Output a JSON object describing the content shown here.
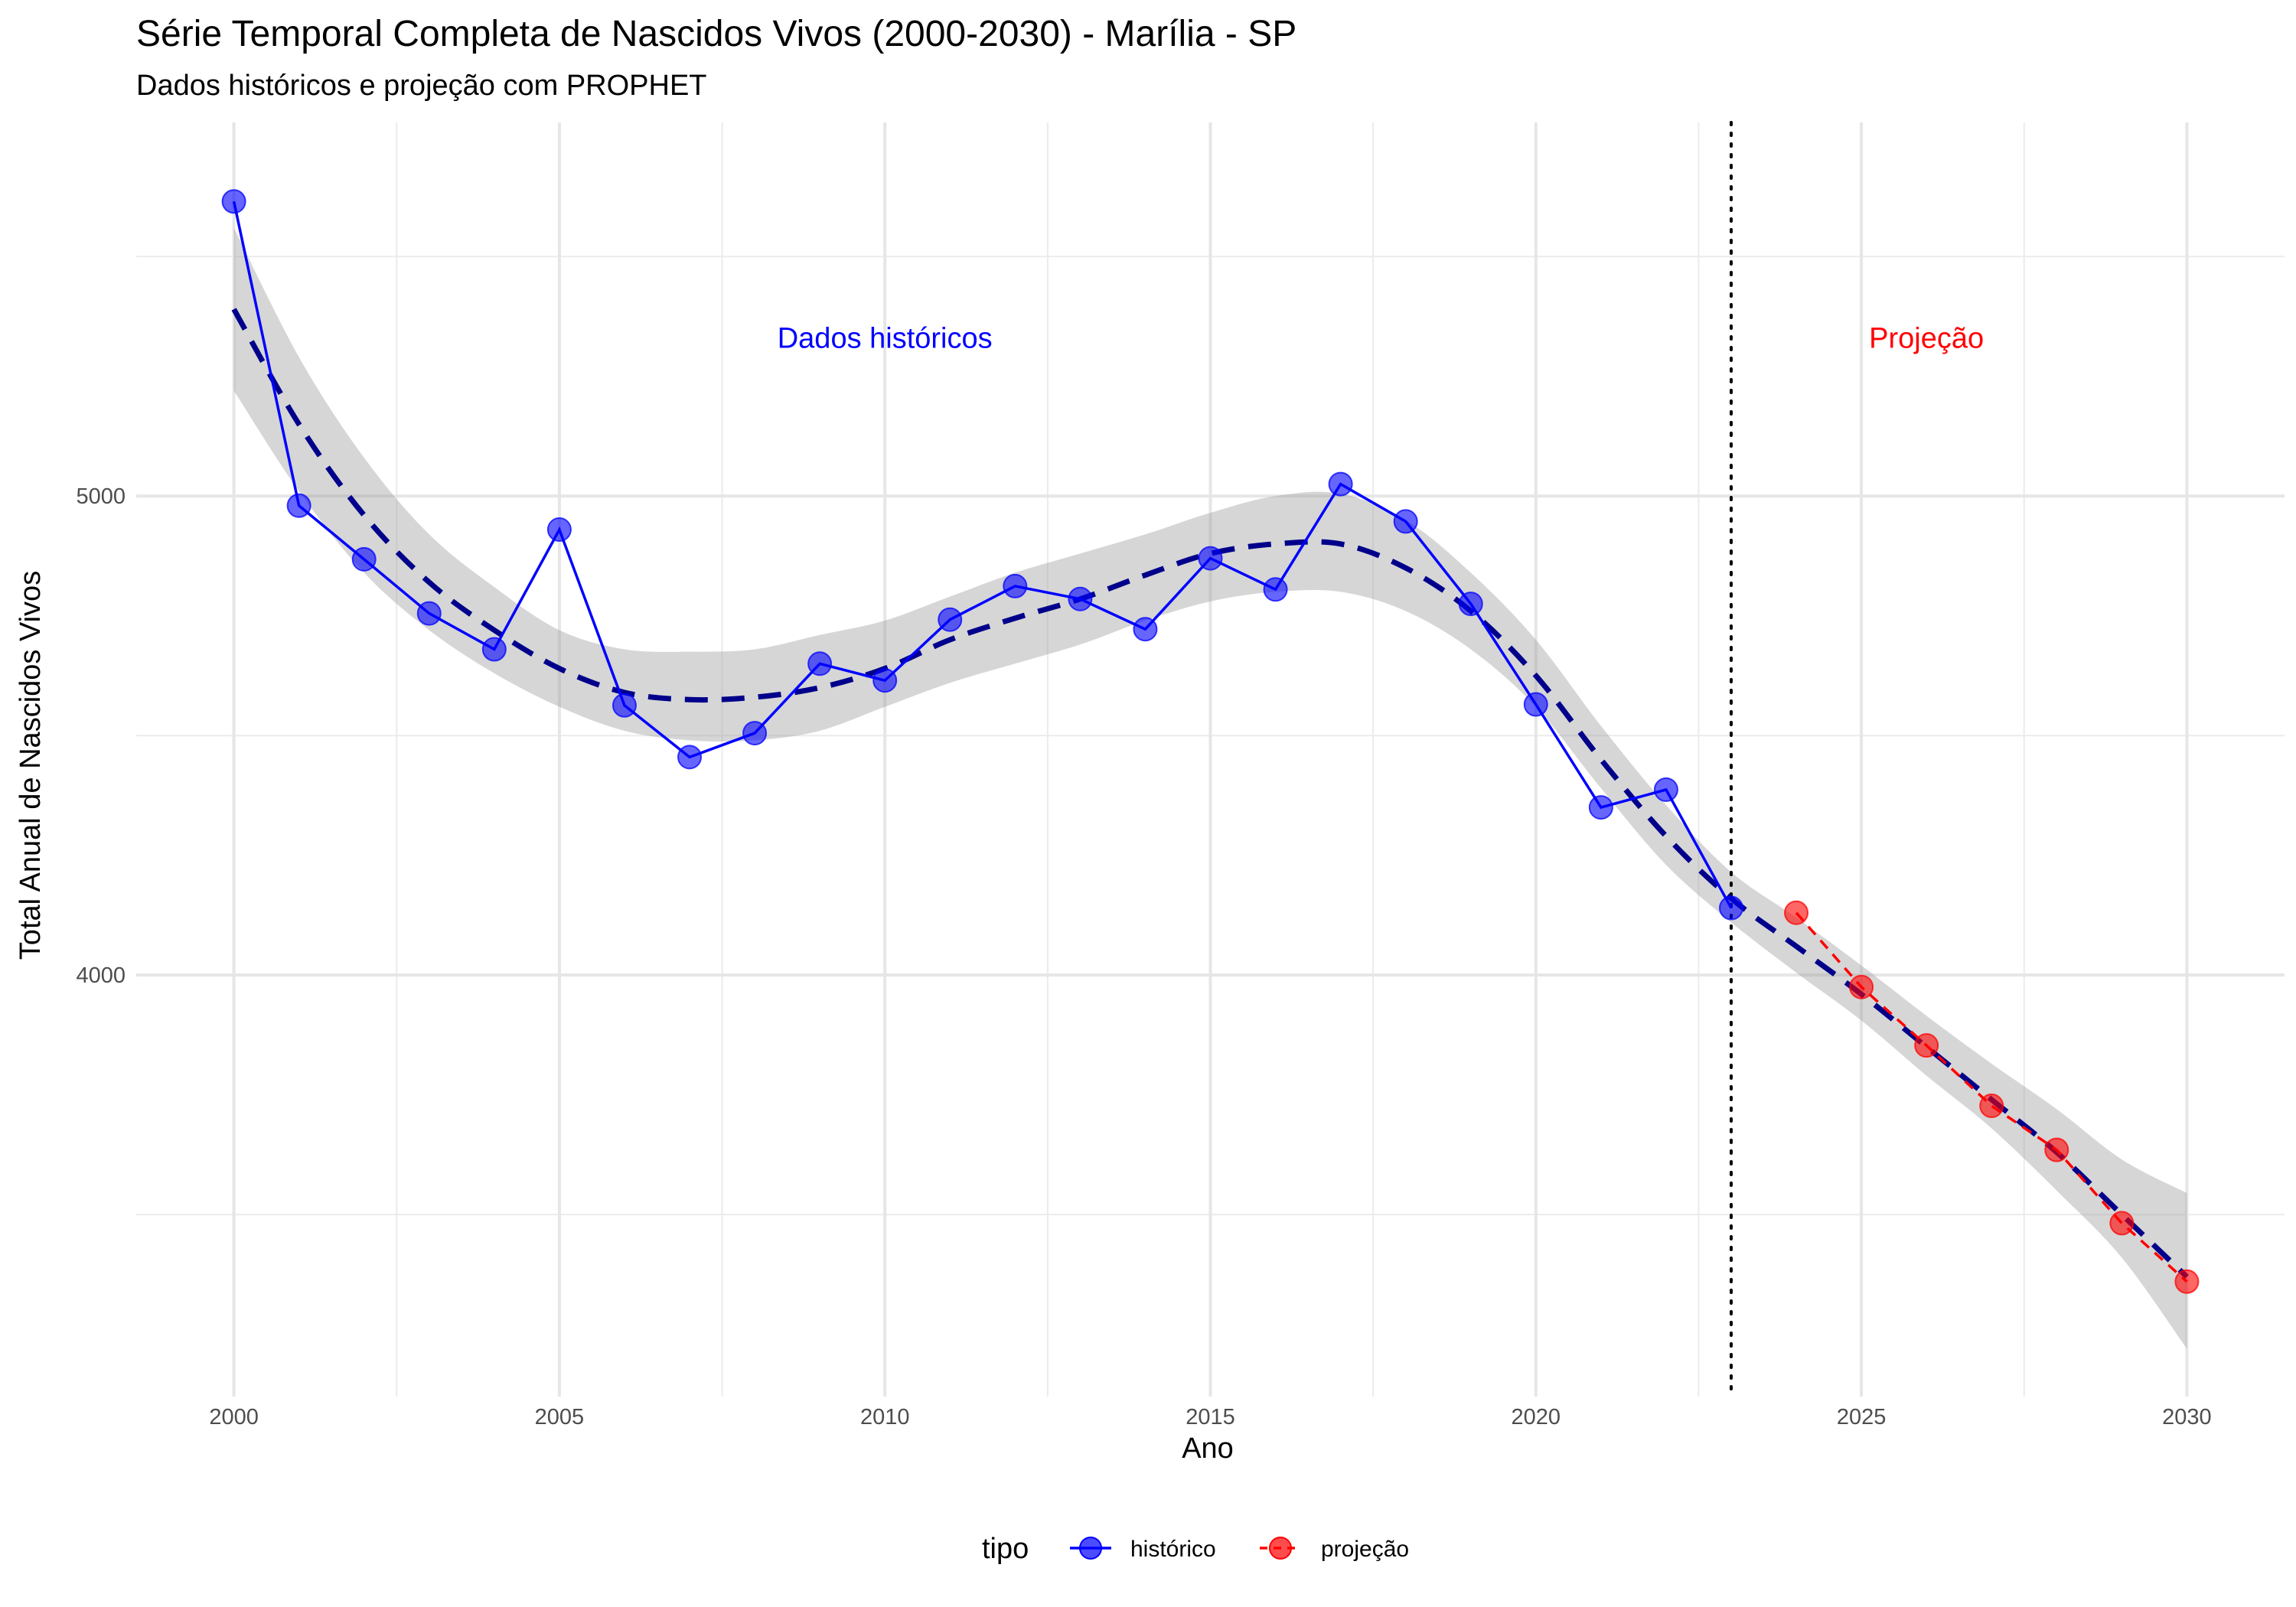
{
  "chart_data": {
    "type": "line",
    "title": "Série Temporal Completa de Nascidos Vivos (2000-2030) -  Marília - SP",
    "subtitle": "Dados históricos e projeção com PROPHET",
    "xlabel": "Ano",
    "ylabel": "Total Anual de Nascidos Vivos",
    "xlim": [
      1998.5,
      2031.5
    ],
    "ylim": [
      3120,
      5780
    ],
    "x_ticks": [
      2000,
      2005,
      2010,
      2015,
      2020,
      2025,
      2030
    ],
    "y_ticks": [
      4000,
      5000
    ],
    "grid": true,
    "legend": {
      "title": "tipo",
      "position": "bottom"
    },
    "divider_x": 2023,
    "annotations": [
      {
        "text": "Dados históricos",
        "x": 2010,
        "y": 5330,
        "color": "#0000ff"
      },
      {
        "text": "Projeção",
        "x": 2026,
        "y": 5330,
        "color": "#ff0000"
      }
    ],
    "series": [
      {
        "name": "histórico",
        "color": "#0000ff",
        "x": [
          2000,
          2001,
          2002,
          2003,
          2004,
          2005,
          2006,
          2007,
          2008,
          2009,
          2010,
          2011,
          2012,
          2013,
          2014,
          2015,
          2016,
          2017,
          2018,
          2019,
          2020,
          2021,
          2022,
          2023
        ],
        "y": [
          5615,
          4980,
          4868,
          4755,
          4680,
          4930,
          4563,
          4455,
          4505,
          4650,
          4615,
          4742,
          4812,
          4785,
          4722,
          4870,
          4805,
          5025,
          4947,
          4775,
          4565,
          4350,
          4387,
          4140
        ]
      },
      {
        "name": "projeção",
        "color": "#ff0000",
        "x": [
          2024,
          2025,
          2026,
          2027,
          2028,
          2029,
          2030
        ],
        "y": [
          4130,
          3975,
          3853,
          3727,
          3635,
          3482,
          3360
        ]
      }
    ],
    "fit": {
      "color": "#00008b",
      "x": [
        2000,
        2001,
        2002,
        2003,
        2004,
        2005,
        2006,
        2007,
        2008,
        2009,
        2010,
        2011,
        2012,
        2013,
        2014,
        2015,
        2016,
        2017,
        2018,
        2019,
        2020,
        2021,
        2022,
        2023,
        2024,
        2025,
        2026,
        2027,
        2028,
        2029,
        2030
      ],
      "y": [
        5390,
        5150,
        4960,
        4820,
        4720,
        4640,
        4590,
        4575,
        4580,
        4600,
        4640,
        4700,
        4745,
        4785,
        4835,
        4880,
        4900,
        4900,
        4850,
        4760,
        4625,
        4450,
        4290,
        4160,
        4060,
        3960,
        3850,
        3740,
        3630,
        3500,
        3370
      ],
      "ci_low": [
        5220,
        5010,
        4840,
        4720,
        4630,
        4560,
        4510,
        4490,
        4490,
        4510,
        4560,
        4610,
        4650,
        4690,
        4740,
        4780,
        4800,
        4800,
        4760,
        4680,
        4560,
        4390,
        4230,
        4110,
        4005,
        3905,
        3790,
        3680,
        3550,
        3410,
        3220
      ],
      "ci_high": [
        5560,
        5290,
        5080,
        4920,
        4810,
        4720,
        4680,
        4675,
        4680,
        4710,
        4740,
        4790,
        4840,
        4880,
        4920,
        4965,
        5000,
        5005,
        4950,
        4840,
        4700,
        4520,
        4355,
        4215,
        4120,
        4020,
        3915,
        3815,
        3720,
        3615,
        3545
      ]
    }
  }
}
